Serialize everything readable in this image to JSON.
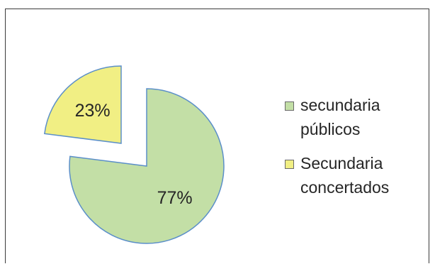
{
  "chart_data": {
    "type": "pie",
    "exploded": true,
    "legend_position": "right",
    "slices": [
      {
        "label": "secundaria\npúblicos",
        "value": 77,
        "data_label": "77%",
        "color": "#c3dfa6",
        "stroke": "#5b8fc9"
      },
      {
        "label": "Secundaria\nconcertados",
        "value": 23,
        "data_label": "23%",
        "color": "#f1ef84",
        "stroke": "#5b8fc9"
      }
    ]
  }
}
